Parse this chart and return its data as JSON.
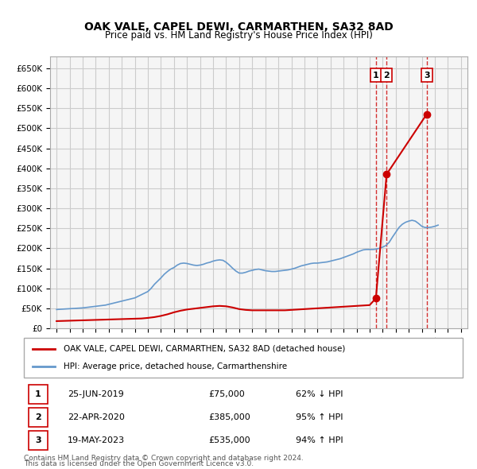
{
  "title": "OAK VALE, CAPEL DEWI, CARMARTHEN, SA32 8AD",
  "subtitle": "Price paid vs. HM Land Registry's House Price Index (HPI)",
  "ylabel_ticks": [
    "£0",
    "£50K",
    "£100K",
    "£150K",
    "£200K",
    "£250K",
    "£300K",
    "£350K",
    "£400K",
    "£450K",
    "£500K",
    "£550K",
    "£600K",
    "£650K"
  ],
  "ytick_values": [
    0,
    50000,
    100000,
    150000,
    200000,
    250000,
    300000,
    350000,
    400000,
    450000,
    500000,
    550000,
    600000,
    650000
  ],
  "xlim_start": 1994.5,
  "xlim_end": 2026.5,
  "ylim_top": 680000,
  "background_color": "#ffffff",
  "grid_color": "#cccccc",
  "hpi_line_color": "#6699cc",
  "price_line_color": "#cc0000",
  "sale_marker_color": "#cc0000",
  "transactions": [
    {
      "num": 1,
      "date": "25-JUN-2019",
      "price": 75000,
      "hpi_pct": "62%",
      "direction": "↓",
      "year": 2019.48
    },
    {
      "num": 2,
      "date": "22-APR-2020",
      "price": 385000,
      "hpi_pct": "95%",
      "direction": "↑",
      "year": 2020.3
    },
    {
      "num": 3,
      "date": "19-MAY-2023",
      "price": 535000,
      "hpi_pct": "94%",
      "direction": "↑",
      "year": 2023.37
    }
  ],
  "legend_line1": "OAK VALE, CAPEL DEWI, CARMARTHEN, SA32 8AD (detached house)",
  "legend_line2": "HPI: Average price, detached house, Carmarthenshire",
  "footnote1": "Contains HM Land Registry data © Crown copyright and database right 2024.",
  "footnote2": "This data is licensed under the Open Government Licence v3.0.",
  "hpi_data_years": [
    1995,
    1995.25,
    1995.5,
    1995.75,
    1996,
    1996.25,
    1996.5,
    1996.75,
    1997,
    1997.25,
    1997.5,
    1997.75,
    1998,
    1998.25,
    1998.5,
    1998.75,
    1999,
    1999.25,
    1999.5,
    1999.75,
    2000,
    2000.25,
    2000.5,
    2000.75,
    2001,
    2001.25,
    2001.5,
    2001.75,
    2002,
    2002.25,
    2002.5,
    2002.75,
    2003,
    2003.25,
    2003.5,
    2003.75,
    2004,
    2004.25,
    2004.5,
    2004.75,
    2005,
    2005.25,
    2005.5,
    2005.75,
    2006,
    2006.25,
    2006.5,
    2006.75,
    2007,
    2007.25,
    2007.5,
    2007.75,
    2008,
    2008.25,
    2008.5,
    2008.75,
    2009,
    2009.25,
    2009.5,
    2009.75,
    2010,
    2010.25,
    2010.5,
    2010.75,
    2011,
    2011.25,
    2011.5,
    2011.75,
    2012,
    2012.25,
    2012.5,
    2012.75,
    2013,
    2013.25,
    2013.5,
    2013.75,
    2014,
    2014.25,
    2014.5,
    2014.75,
    2015,
    2015.25,
    2015.5,
    2015.75,
    2016,
    2016.25,
    2016.5,
    2016.75,
    2017,
    2017.25,
    2017.5,
    2017.75,
    2018,
    2018.25,
    2018.5,
    2018.75,
    2019,
    2019.25,
    2019.5,
    2019.75,
    2020,
    2020.25,
    2020.5,
    2020.75,
    2021,
    2021.25,
    2021.5,
    2021.75,
    2022,
    2022.25,
    2022.5,
    2022.75,
    2023,
    2023.25,
    2023.5,
    2023.75,
    2024,
    2024.25
  ],
  "hpi_data_values": [
    47000,
    47500,
    48000,
    48500,
    49000,
    49500,
    50000,
    50500,
    51000,
    52000,
    53000,
    54000,
    55000,
    56000,
    57000,
    58000,
    60000,
    62000,
    64000,
    66000,
    68000,
    70000,
    72000,
    74000,
    76000,
    80000,
    84000,
    88000,
    92000,
    100000,
    110000,
    118000,
    126000,
    135000,
    142000,
    148000,
    152000,
    158000,
    162000,
    163000,
    162000,
    160000,
    158000,
    157000,
    158000,
    160000,
    163000,
    165000,
    168000,
    170000,
    171000,
    170000,
    165000,
    158000,
    150000,
    143000,
    138000,
    138000,
    140000,
    143000,
    145000,
    147000,
    148000,
    146000,
    144000,
    143000,
    142000,
    142000,
    143000,
    144000,
    145000,
    146000,
    148000,
    150000,
    153000,
    156000,
    158000,
    160000,
    162000,
    163000,
    163000,
    164000,
    165000,
    166000,
    168000,
    170000,
    172000,
    174000,
    177000,
    180000,
    183000,
    186000,
    190000,
    193000,
    196000,
    197000,
    197000,
    197000,
    198000,
    200000,
    203000,
    207000,
    215000,
    228000,
    240000,
    252000,
    260000,
    265000,
    268000,
    270000,
    268000,
    262000,
    255000,
    252000,
    252000,
    253000,
    255000,
    258000
  ],
  "red_data_years": [
    1995,
    1995.5,
    1996,
    1996.5,
    1997,
    1997.5,
    1998,
    1998.5,
    1999,
    1999.5,
    2000,
    2000.5,
    2001,
    2001.5,
    2002,
    2002.5,
    2003,
    2003.5,
    2004,
    2004.5,
    2005,
    2005.5,
    2006,
    2006.5,
    2007,
    2007.5,
    2008,
    2008.5,
    2009,
    2009.5,
    2010,
    2010.5,
    2011,
    2011.5,
    2012,
    2012.5,
    2013,
    2013.5,
    2014,
    2014.5,
    2015,
    2015.5,
    2016,
    2016.5,
    2017,
    2017.5,
    2018,
    2018.5,
    2019,
    2019.48,
    2020.3,
    2023.37
  ],
  "red_data_values": [
    18000,
    18500,
    19000,
    19500,
    20000,
    20500,
    21000,
    21500,
    22000,
    22500,
    23000,
    23500,
    24000,
    24500,
    26000,
    28000,
    31000,
    35000,
    40000,
    44000,
    47000,
    49000,
    51000,
    53000,
    55000,
    56000,
    55000,
    52000,
    48000,
    46000,
    45000,
    45000,
    45000,
    45000,
    45000,
    45000,
    46000,
    47000,
    48000,
    49000,
    50000,
    51000,
    52000,
    53000,
    54000,
    55000,
    56000,
    57000,
    58000,
    75000,
    385000,
    535000
  ]
}
